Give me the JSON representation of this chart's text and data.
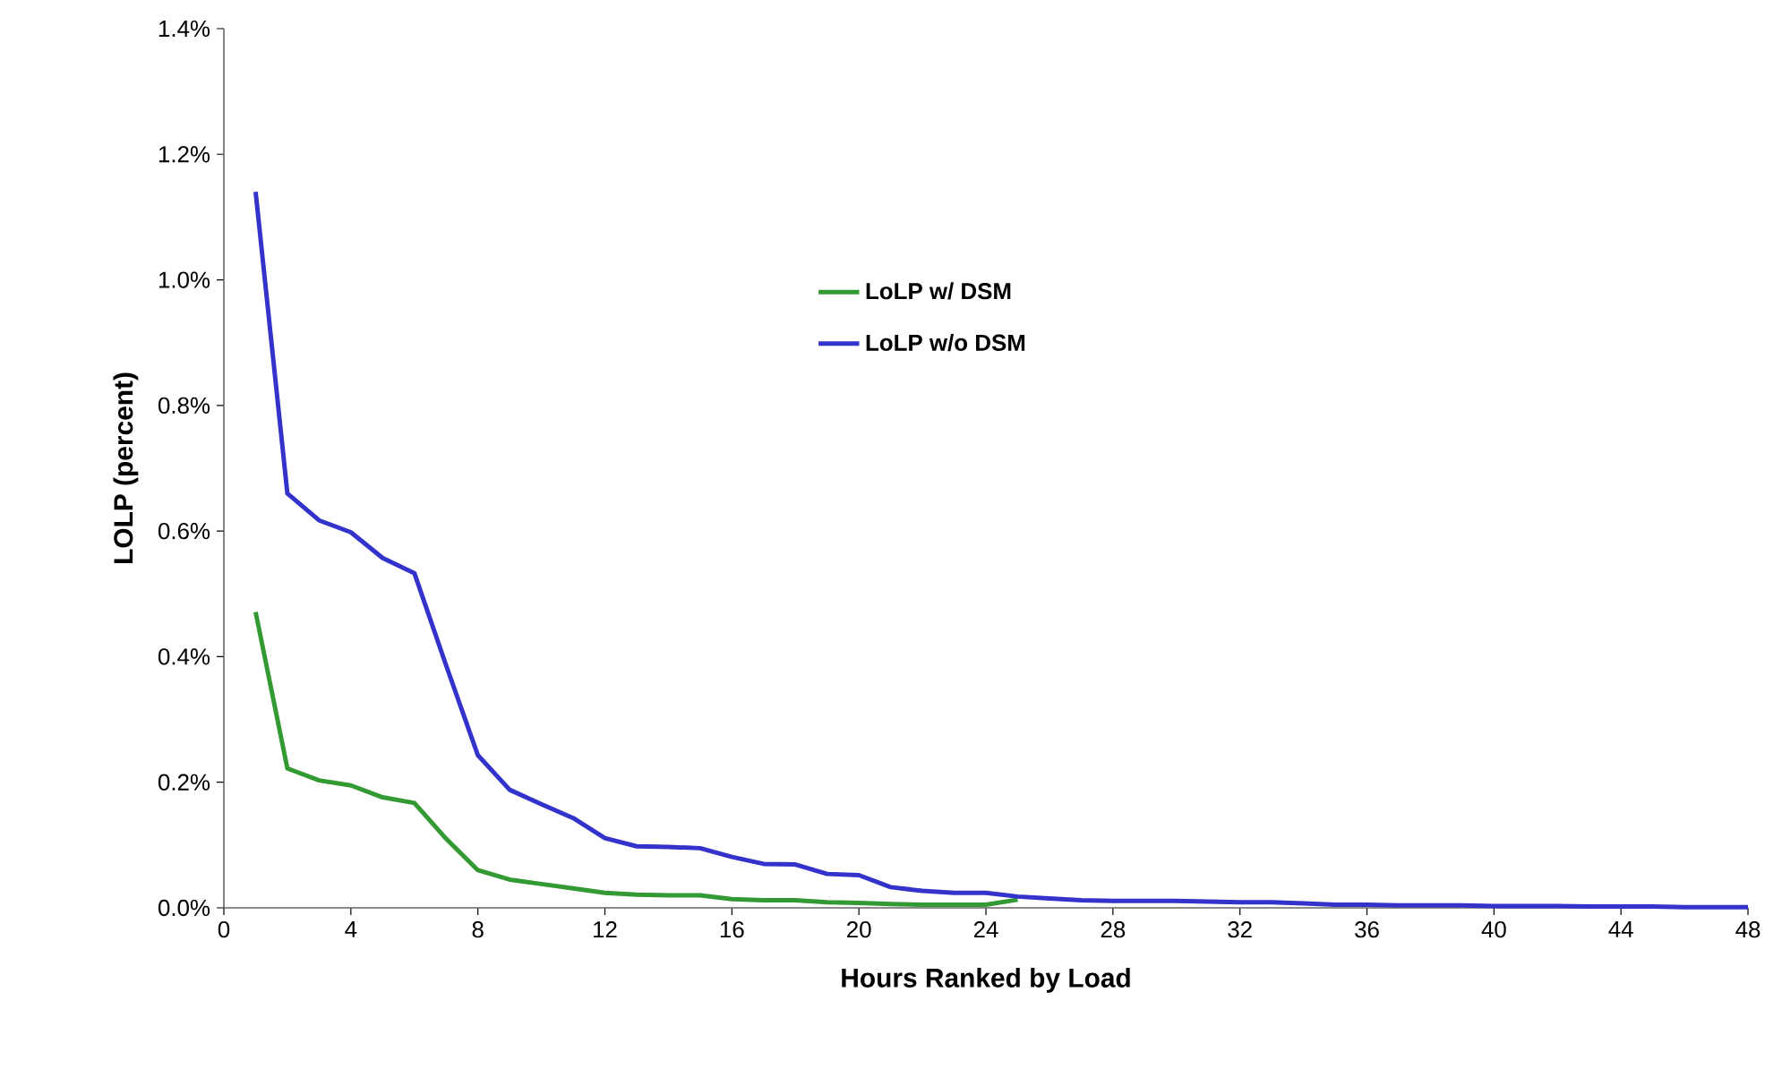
{
  "chart_data": {
    "type": "line",
    "xlabel": "Hours Ranked by Load",
    "ylabel": "LOLP (percent)",
    "x": [
      1,
      2,
      3,
      4,
      5,
      6,
      7,
      8,
      9,
      10,
      11,
      12,
      13,
      14,
      15,
      16,
      17,
      18,
      19,
      20,
      21,
      22,
      23,
      24,
      25,
      26,
      27,
      28,
      29,
      30,
      31,
      32,
      33,
      34,
      35,
      36,
      37,
      38,
      39,
      40,
      41,
      42,
      43,
      44,
      45,
      46,
      47,
      48
    ],
    "series": [
      {
        "name": "LoLP w/ DSM",
        "color": "#339933",
        "values": [
          0.471,
          0.222,
          0.203,
          0.195,
          0.176,
          0.167,
          0.11,
          0.06,
          0.045,
          0.038,
          0.031,
          0.024,
          0.021,
          0.02,
          0.02,
          0.014,
          0.012,
          0.012,
          0.009,
          0.008,
          0.006,
          0.005,
          0.005,
          0.005,
          0.013,
          null,
          null,
          null,
          null,
          null,
          null,
          null,
          null,
          null,
          null,
          null,
          null,
          null,
          null,
          null,
          null,
          null,
          null,
          null,
          null,
          null,
          null,
          null
        ]
      },
      {
        "name": "LoLP w/o DSM",
        "color": "#3333cc",
        "values": [
          1.14,
          0.66,
          0.617,
          0.598,
          0.557,
          0.533,
          0.386,
          0.243,
          0.188,
          0.165,
          0.143,
          0.111,
          0.098,
          0.097,
          0.095,
          0.081,
          0.07,
          0.069,
          0.054,
          0.052,
          0.033,
          0.027,
          0.024,
          0.024,
          0.018,
          0.015,
          0.012,
          0.011,
          0.011,
          0.011,
          0.01,
          0.009,
          0.009,
          0.007,
          0.005,
          0.005,
          0.004,
          0.004,
          0.004,
          0.003,
          0.003,
          0.003,
          0.002,
          0.002,
          0.002,
          0.001,
          0.001,
          0.001
        ]
      }
    ],
    "xlim": [
      0,
      48
    ],
    "xticks": [
      0,
      4,
      8,
      12,
      16,
      20,
      24,
      28,
      32,
      36,
      40,
      44,
      48
    ],
    "ylim": [
      0,
      1.4
    ],
    "yticks": [
      {
        "value": 0,
        "label": "0.0%"
      },
      {
        "value": 0.2,
        "label": "0.2%"
      },
      {
        "value": 0.4,
        "label": "0.4%"
      },
      {
        "value": 0.6,
        "label": "0.6%"
      },
      {
        "value": 0.8,
        "label": "0.8%"
      },
      {
        "value": 1.0,
        "label": "1.0%"
      },
      {
        "value": 1.2,
        "label": "1.2%"
      },
      {
        "value": 1.4,
        "label": "1.4%"
      }
    ],
    "grid": false,
    "legend": "center",
    "marker": "none",
    "line_style": "solid"
  }
}
